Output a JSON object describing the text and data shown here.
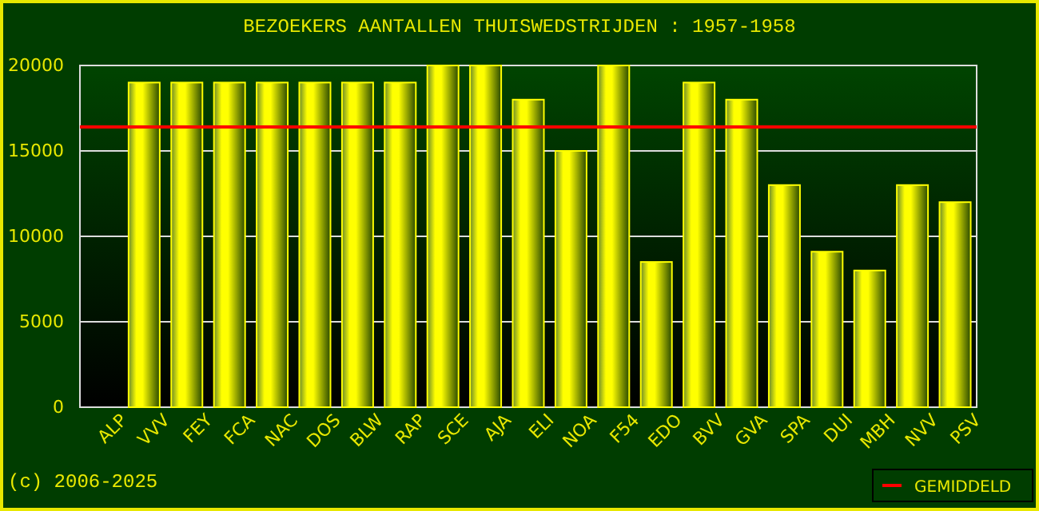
{
  "chart_data": {
    "type": "bar",
    "title": "BEZOEKERS AANTALLEN THUISWEDSTRIJDEN : 1957-1958",
    "categories": [
      "ALP",
      "VVV",
      "FEY",
      "FCA",
      "NAC",
      "DOS",
      "BLW",
      "RAP",
      "SCE",
      "AJA",
      "ELI",
      "NOA",
      "F54",
      "EDO",
      "BVV",
      "GVA",
      "SPA",
      "DUI",
      "MBH",
      "NVV",
      "PSV"
    ],
    "values": [
      null,
      19000,
      19000,
      19000,
      19000,
      19000,
      19000,
      19000,
      20000,
      20000,
      18000,
      15000,
      20000,
      8500,
      19000,
      18000,
      13000,
      9100,
      8000,
      13000,
      12000
    ],
    "color": "#ffff00",
    "ylim": [
      0,
      20000
    ],
    "yticks": [
      0,
      5000,
      10000,
      15000,
      20000
    ],
    "grid": "y",
    "ref_lines": [
      {
        "axis": "y",
        "value": 16400,
        "label": "GEMIDDELD",
        "color": "#ff0000"
      }
    ],
    "legend": "bottom right",
    "annotations": [
      "(c) 2006-2025"
    ]
  }
}
